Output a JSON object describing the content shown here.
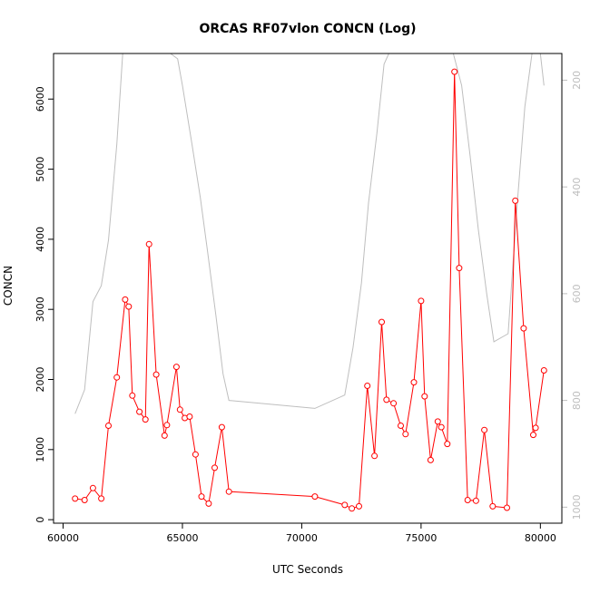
{
  "chart_data": {
    "type": "line",
    "title": "ORCAS RF07vlon CONCN (Log)",
    "xlabel": "UTC Seconds",
    "ylabel": "CONCN",
    "y2label": "",
    "xlim": [
      59600,
      80900
    ],
    "ylim": [
      -50,
      6650
    ],
    "y2lim": [
      1030,
      150
    ],
    "xticks": [
      60000,
      65000,
      70000,
      75000,
      80000
    ],
    "yticks": [
      0,
      1000,
      2000,
      3000,
      4000,
      5000,
      6000
    ],
    "y2ticks": [
      200,
      400,
      600,
      800,
      1000
    ],
    "grid": false,
    "legend": "none",
    "colors": {
      "concn": "#ff0000",
      "secondary": "#bebebe",
      "right_axis": "#bebebe",
      "axis": "#000000"
    },
    "series": [
      {
        "color": "#ff0000",
        "axis": "left",
        "markers": "open-circle",
        "x": [
          60500,
          60900,
          61250,
          61600,
          61900,
          62250,
          62600,
          62750,
          62900,
          63200,
          63450,
          63600,
          63900,
          64250,
          64350,
          64750,
          64900,
          65100,
          65300,
          65550,
          65800,
          66100,
          66350,
          66650,
          66950,
          70550,
          71800,
          72100,
          72400,
          72750,
          73050,
          73350,
          73550,
          73850,
          74150,
          74350,
          74700,
          75000,
          75150,
          75400,
          75700,
          75850,
          76100,
          76400,
          76600,
          76950,
          77300,
          77650,
          78000,
          78600,
          78950,
          79300,
          79700,
          79800,
          80150
        ],
        "y": [
          300,
          280,
          450,
          300,
          1340,
          2030,
          3140,
          3040,
          1770,
          1540,
          1430,
          3930,
          2070,
          1200,
          1350,
          2180,
          1570,
          1450,
          1470,
          930,
          330,
          230,
          740,
          1320,
          400,
          330,
          210,
          160,
          190,
          1910,
          910,
          2820,
          1710,
          1660,
          1340,
          1220,
          1960,
          3120,
          1760,
          850,
          1400,
          1320,
          1080,
          6390,
          3590,
          280,
          270,
          1280,
          190,
          170,
          4550,
          2730,
          1210,
          1310,
          2130
        ]
      },
      {
        "color": "#bebebe",
        "axis": "right",
        "markers": "none",
        "x": [
          60500,
          60900,
          61250,
          61600,
          61900,
          62250,
          62500,
          64500,
          64800,
          65000,
          65400,
          65750,
          66050,
          66400,
          66700,
          66950,
          70550,
          71800,
          72150,
          72500,
          72800,
          73150,
          73450,
          73650,
          76350,
          76700,
          77050,
          77400,
          77750,
          78050,
          78650,
          79000,
          79350,
          79650,
          80000,
          80150
        ],
        "y": [
          825,
          780,
          615,
          585,
          500,
          320,
          150,
          150,
          160,
          210,
          320,
          420,
          520,
          640,
          750,
          800,
          815,
          790,
          700,
          580,
          430,
          300,
          170,
          150,
          150,
          210,
          340,
          480,
          600,
          690,
          675,
          450,
          250,
          120,
          120,
          210
        ]
      }
    ]
  }
}
